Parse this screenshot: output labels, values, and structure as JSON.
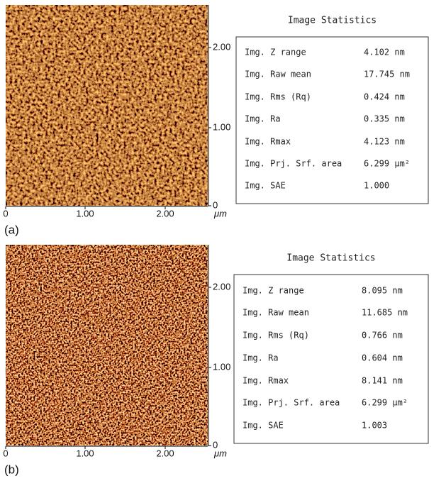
{
  "panels": [
    {
      "label": "(a)",
      "x_ticks": [
        "0",
        "1.00",
        "2.00"
      ],
      "x_unit": "μm",
      "y_ticks": [
        "2.00",
        "1.00",
        "0"
      ],
      "stats_title": "Image Statistics",
      "stats": [
        [
          "Img. Z range",
          "4.102 nm"
        ],
        [
          "Img. Raw mean",
          "17.745 nm"
        ],
        [
          "Img. Rms (Rq)",
          "0.424 nm"
        ],
        [
          "Img. Ra",
          "0.335 nm"
        ],
        [
          "Img. Rmax",
          "4.123 nm"
        ],
        [
          "Img. Prj. Srf. area",
          "6.299 μm²"
        ],
        [
          "Img. SAE",
          "1.000"
        ]
      ]
    },
    {
      "label": "(b)",
      "x_ticks": [
        "0",
        "1.00",
        "2.00"
      ],
      "x_unit": "μm",
      "y_ticks": [
        "2.00",
        "1.00",
        "0"
      ],
      "stats_title": "Image Statistics",
      "stats": [
        [
          "Img. Z range",
          "8.095 nm"
        ],
        [
          "Img. Raw mean",
          "11.685 nm"
        ],
        [
          "Img. Rms (Rq)",
          "0.766 nm"
        ],
        [
          "Img. Ra",
          "0.604 nm"
        ],
        [
          "Img. Rmax",
          "8.141 nm"
        ],
        [
          "Img. Prj. Srf. area",
          "6.299 μm²"
        ],
        [
          "Img. SAE",
          "1.003"
        ]
      ]
    }
  ]
}
